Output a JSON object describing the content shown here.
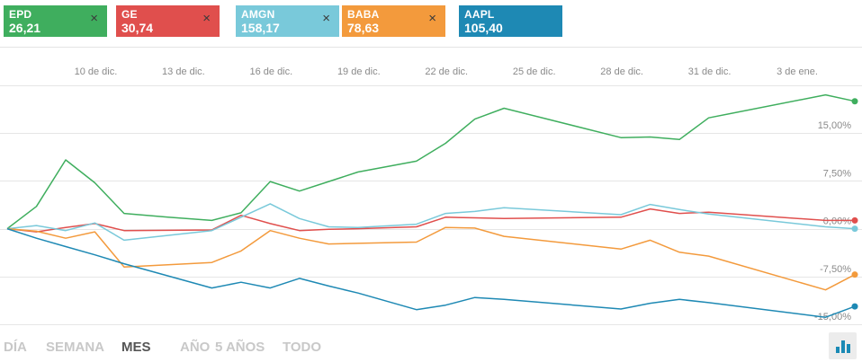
{
  "tickers": [
    {
      "symbol": "EPD",
      "price": "26,21",
      "color": "#3fae5e",
      "close": "×"
    },
    {
      "symbol": "GE",
      "price": "30,74",
      "color": "#e04f4d",
      "close": "×"
    },
    {
      "symbol": "AMGN",
      "price": "158,17",
      "color": "#79c9da",
      "close": "×"
    },
    {
      "symbol": "BABA",
      "price": "78,63",
      "color": "#f39a3c",
      "close": "×"
    },
    {
      "symbol": "AAPL",
      "price": "105,40",
      "color": "#1e89b4",
      "close": ""
    }
  ],
  "ranges": [
    {
      "label": "DÍA",
      "active": false
    },
    {
      "label": "SEMANA",
      "active": false
    },
    {
      "label": "MES",
      "active": true
    },
    {
      "label": "AÑO",
      "active": false
    },
    {
      "label": "5 AÑOS",
      "active": false
    },
    {
      "label": "TODO",
      "active": false
    }
  ],
  "chart_type_icon": "bar-chart-icon",
  "chart_data": {
    "type": "line",
    "x_tick_labels": [
      "10 de dic.",
      "13 de dic.",
      "16 de dic.",
      "19 de dic.",
      "22 de dic.",
      "25 de dic.",
      "28 de dic.",
      "31 de dic.",
      "3 de ene."
    ],
    "x_ticks": [
      3,
      6,
      9,
      12,
      15,
      18,
      21,
      24,
      27
    ],
    "x_range": [
      0,
      29
    ],
    "y_tick_values": [
      15,
      7.5,
      0,
      -7.5,
      -15
    ],
    "y_tick_labels": [
      "15,00%",
      "7,50%",
      "0,00%",
      "-7,50%",
      "-15,00%"
    ],
    "y_range": [
      -15,
      22.5
    ],
    "grid": true,
    "series": [
      {
        "name": "EPD",
        "color": "#3fae5e",
        "x": [
          0,
          1,
          2,
          3,
          4,
          5.5,
          7,
          8,
          9,
          10,
          11,
          12,
          14,
          15,
          16,
          17,
          21,
          22,
          23,
          24,
          28,
          29
        ],
        "y": [
          0,
          3.5,
          10.8,
          7.2,
          2.4,
          1.8,
          1.3,
          2.5,
          7.4,
          5.9,
          7.4,
          8.9,
          10.6,
          13.4,
          17.2,
          18.9,
          14.3,
          14.4,
          14.0,
          17.4,
          21.0,
          20.0
        ]
      },
      {
        "name": "GE",
        "color": "#e04f4d",
        "x": [
          0,
          1,
          2,
          3,
          4,
          7,
          8,
          9,
          10,
          11,
          12,
          14,
          15,
          16,
          17,
          21,
          22,
          23,
          24,
          28,
          29
        ],
        "y": [
          0,
          -0.5,
          0.2,
          0.8,
          -0.3,
          -0.2,
          2.1,
          0.8,
          -0.3,
          -0.1,
          0,
          0.3,
          1.8,
          1.7,
          1.6,
          1.8,
          3.1,
          2.4,
          2.6,
          1.3,
          1.3
        ]
      },
      {
        "name": "AMGN",
        "color": "#79c9da",
        "x": [
          0,
          1,
          2,
          3,
          4,
          7,
          8,
          9,
          10,
          11,
          12,
          14,
          15,
          16,
          17,
          21,
          22,
          23,
          24,
          28,
          29
        ],
        "y": [
          0,
          0.5,
          -0.3,
          0.9,
          -1.8,
          -0.3,
          1.8,
          3.9,
          1.6,
          0.3,
          0.2,
          0.7,
          2.4,
          2.7,
          3.3,
          2.2,
          3.8,
          3.0,
          2.3,
          0.3,
          0
        ]
      },
      {
        "name": "BABA",
        "color": "#f39a3c",
        "x": [
          0,
          1,
          2,
          3,
          4,
          7,
          8,
          9,
          10,
          11,
          12,
          14,
          15,
          16,
          17,
          21,
          22,
          23,
          24,
          28,
          29
        ],
        "y": [
          0,
          -0.4,
          -1.5,
          -0.5,
          -6.0,
          -5.3,
          -3.5,
          -0.3,
          -1.5,
          -2.4,
          -2.3,
          -2.1,
          0.2,
          0.1,
          -1.2,
          -3.2,
          -1.8,
          -3.7,
          -4.3,
          -9.6,
          -7.2
        ]
      },
      {
        "name": "AAPL",
        "color": "#1e89b4",
        "x": [
          0,
          1,
          2,
          3,
          4,
          7,
          8,
          9,
          10,
          11,
          12,
          14,
          15,
          16,
          17,
          21,
          22,
          23,
          24,
          28,
          29
        ],
        "y": [
          0,
          -1.5,
          -2.8,
          -4.1,
          -5.5,
          -9.3,
          -8.4,
          -9.3,
          -7.8,
          -9.0,
          -10.1,
          -12.7,
          -12.0,
          -10.8,
          -11.1,
          -12.6,
          -11.7,
          -11.1,
          -11.6,
          -13.9,
          -12.2
        ]
      }
    ]
  }
}
